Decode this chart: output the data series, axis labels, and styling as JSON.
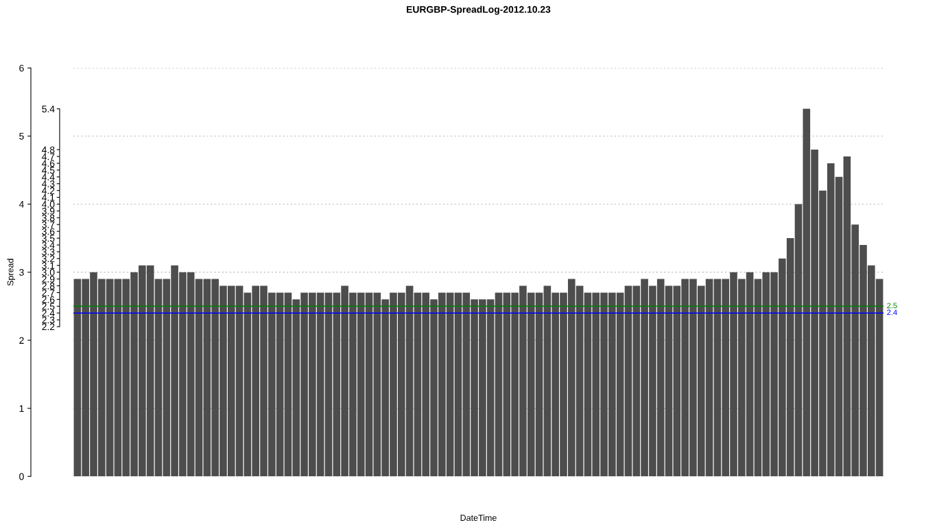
{
  "chart_data": {
    "type": "bar",
    "title": "EURGBP-SpreadLog-2012.10.23",
    "xlabel": "DateTime",
    "ylabel": "Spread",
    "categories": [
      null,
      null,
      null,
      null,
      null,
      null,
      null,
      null,
      null,
      null,
      null,
      null,
      null,
      null,
      null,
      null,
      null,
      null,
      null,
      null,
      null,
      null,
      null,
      null,
      null,
      null,
      null,
      null,
      null,
      null,
      null,
      null,
      null,
      null,
      null,
      null,
      null,
      null,
      null,
      null,
      null,
      null,
      null,
      null,
      null,
      null,
      null,
      null,
      null,
      null,
      null,
      null,
      null,
      null,
      null,
      null,
      null,
      null,
      null,
      null,
      null,
      null,
      null,
      null,
      null,
      null,
      null,
      null,
      null,
      null,
      null,
      null,
      null,
      null,
      null,
      null,
      null,
      null,
      null,
      null,
      null,
      null,
      null,
      null,
      null,
      null,
      null,
      null,
      null,
      null,
      null,
      null,
      null,
      null,
      null,
      null,
      null,
      null,
      null,
      null
    ],
    "series": [
      {
        "color": "#4d4d4d",
        "values": [
          2.9,
          2.9,
          3.0,
          2.9,
          2.9,
          2.9,
          2.9,
          3.0,
          3.1,
          3.1,
          2.9,
          2.9,
          3.1,
          3.0,
          3.0,
          2.9,
          2.9,
          2.9,
          2.8,
          2.8,
          2.8,
          2.7,
          2.8,
          2.8,
          2.7,
          2.7,
          2.7,
          2.6,
          2.7,
          2.7,
          2.7,
          2.7,
          2.7,
          2.8,
          2.7,
          2.7,
          2.7,
          2.7,
          2.6,
          2.7,
          2.7,
          2.8,
          2.7,
          2.7,
          2.6,
          2.7,
          2.7,
          2.7,
          2.7,
          2.6,
          2.6,
          2.6,
          2.7,
          2.7,
          2.7,
          2.8,
          2.7,
          2.7,
          2.8,
          2.7,
          2.7,
          2.9,
          2.8,
          2.7,
          2.7,
          2.7,
          2.7,
          2.7,
          2.8,
          2.8,
          2.9,
          2.8,
          2.9,
          2.8,
          2.8,
          2.9,
          2.9,
          2.8,
          2.9,
          2.9,
          2.9,
          3.0,
          2.9,
          3.0,
          2.9,
          3.0,
          3.0,
          3.2,
          3.5,
          4.0,
          5.4,
          4.8,
          4.2,
          4.6,
          4.4,
          4.7,
          3.7,
          3.4,
          3.1,
          2.9
        ]
      }
    ],
    "ylim": [
      0,
      6
    ],
    "yticks": [
      0,
      1,
      2,
      3,
      4,
      5,
      6
    ],
    "y2lim": [
      0,
      6
    ],
    "y2ticks": [
      2.2,
      2.3,
      2.4,
      2.5,
      2.6,
      2.7,
      2.8,
      2.9,
      {
        "value": 3,
        "label": "3.0"
      },
      3.1,
      3.2,
      3.3,
      3.4,
      3.5,
      3.6,
      3.7,
      3.8,
      3.9,
      {
        "value": 4,
        "label": "4.0"
      },
      4.1,
      4.2,
      4.3,
      4.4,
      4.5,
      4.6,
      4.7,
      4.8,
      5.4
    ],
    "ref_lines": [
      {
        "axis": "y",
        "value": 2.5,
        "label": "2.5",
        "color": "#008000"
      },
      {
        "axis": "y",
        "value": 2.4,
        "label": "2.4",
        "color": "#0000ff"
      }
    ],
    "grid": "y"
  }
}
